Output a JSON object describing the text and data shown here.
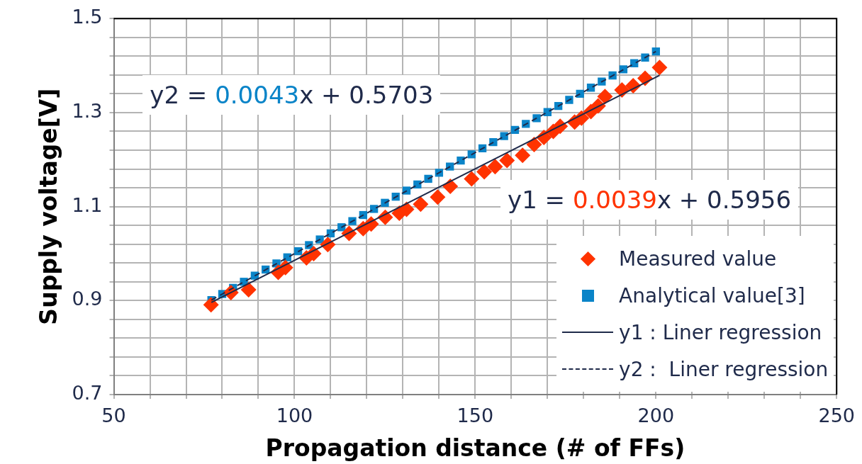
{
  "chart_data": {
    "type": "scatter",
    "xlabel": "Propagation distance (# of FFs)",
    "ylabel": "Supply voltage[V]",
    "xlim": [
      50,
      250
    ],
    "ylim": [
      0.7,
      1.5
    ],
    "xticks": [
      50,
      {
        "value": 60,
        "label": null
      },
      {
        "value": 70,
        "label": null
      },
      {
        "value": 80,
        "label": null
      },
      {
        "value": 90,
        "label": null
      },
      100,
      {
        "value": 110,
        "label": null
      },
      {
        "value": 120,
        "label": null
      },
      {
        "value": 130,
        "label": null
      },
      {
        "value": 140,
        "label": null
      },
      150,
      {
        "value": 160,
        "label": null
      },
      {
        "value": 170,
        "label": null
      },
      {
        "value": 180,
        "label": null
      },
      {
        "value": 190,
        "label": null
      },
      200,
      {
        "value": 210,
        "label": null
      },
      {
        "value": 220,
        "label": null
      },
      {
        "value": 230,
        "label": null
      },
      {
        "value": 240,
        "label": null
      },
      250
    ],
    "yticks": [
      0.7,
      {
        "value": 0.74,
        "label": null
      },
      {
        "value": 0.78,
        "label": null
      },
      {
        "value": 0.82,
        "label": null
      },
      {
        "value": 0.86,
        "label": null
      },
      0.9,
      {
        "value": 0.94,
        "label": null
      },
      {
        "value": 0.98,
        "label": null
      },
      {
        "value": 1.02,
        "label": null
      },
      {
        "value": 1.06,
        "label": null
      },
      1.1,
      {
        "value": 1.14,
        "label": null
      },
      {
        "value": 1.18,
        "label": null
      },
      {
        "value": 1.22,
        "label": null
      },
      {
        "value": 1.26,
        "label": null
      },
      1.3,
      {
        "value": 1.34,
        "label": null
      },
      {
        "value": 1.38,
        "label": null
      },
      {
        "value": 1.42,
        "label": null
      },
      {
        "value": 1.46,
        "label": null
      },
      1.5
    ],
    "grid": true,
    "legend": "bottom right",
    "annotations": [
      "y2 = 0.0043x + 0.5703",
      "y1 = 0.0039x + 0.5956"
    ],
    "series": [
      {
        "name": "Measured value",
        "marker": "diamond",
        "color": "#ff3300",
        "x": [
          76.9,
          82.4,
          87.3,
          95.5,
          97.5,
          103.3,
          105.3,
          109.2,
          115.1,
          119,
          121.2,
          125.1,
          129,
          131,
          134.9,
          139.6,
          143.1,
          149,
          152.5,
          155.5,
          158.8,
          163.1,
          166.3,
          169,
          171.6,
          173.5,
          177.5,
          179.4,
          182,
          184,
          185.9,
          190.6,
          193.7,
          197,
          201
        ],
        "values": [
          0.891,
          0.917,
          0.923,
          0.96,
          0.97,
          0.991,
          1.0,
          1.019,
          1.043,
          1.053,
          1.063,
          1.077,
          1.086,
          1.094,
          1.105,
          1.12,
          1.143,
          1.159,
          1.174,
          1.185,
          1.198,
          1.209,
          1.232,
          1.247,
          1.26,
          1.271,
          1.28,
          1.288,
          1.302,
          1.314,
          1.334,
          1.348,
          1.357,
          1.373,
          1.396
        ]
      },
      {
        "name": "Analytical value[3]",
        "marker": "square",
        "color": "#0a84c8",
        "x": [
          77,
          80,
          83,
          86,
          89,
          92,
          95,
          98,
          101,
          104,
          107,
          110,
          113,
          116,
          119,
          122,
          125,
          128,
          131,
          134,
          137,
          140,
          143,
          146,
          149,
          152,
          155,
          158,
          161,
          164,
          167,
          170,
          173,
          176,
          179,
          182,
          185,
          188,
          191,
          194,
          197,
          200
        ],
        "values": [
          0.901,
          0.914,
          0.927,
          0.94,
          0.953,
          0.966,
          0.979,
          0.992,
          1.005,
          1.018,
          1.03,
          1.043,
          1.056,
          1.069,
          1.082,
          1.095,
          1.108,
          1.121,
          1.134,
          1.147,
          1.159,
          1.172,
          1.185,
          1.198,
          1.211,
          1.224,
          1.237,
          1.25,
          1.263,
          1.276,
          1.288,
          1.301,
          1.314,
          1.327,
          1.34,
          1.353,
          1.366,
          1.379,
          1.392,
          1.405,
          1.417,
          1.43
        ]
      },
      {
        "name": "y1 : Liner regression",
        "type": "line",
        "marker": "none",
        "line_style": "solid",
        "color": "#1f2a4a",
        "x": [
          77,
          201
        ],
        "values": [
          0.896,
          1.379
        ]
      },
      {
        "name": "y2 :  Liner regression",
        "type": "line",
        "marker": "none",
        "line_style": "dashed",
        "color": "#1f2a4a",
        "x": [
          77,
          200
        ],
        "values": [
          0.901,
          1.43
        ]
      }
    ]
  }
}
